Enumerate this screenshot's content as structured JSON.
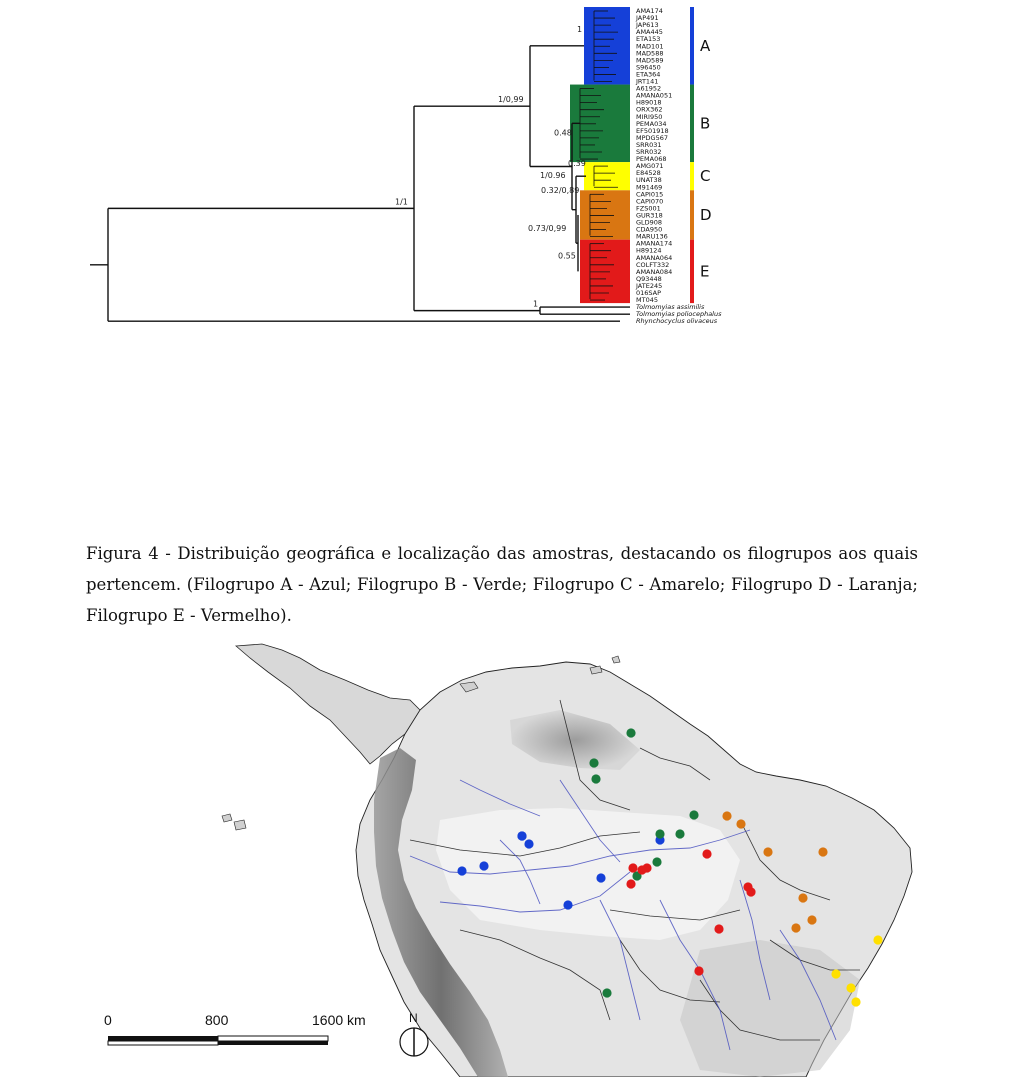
{
  "tree": {
    "clades": [
      {
        "label": "A",
        "color": "#1540d8",
        "leaves": [
          "AMA174",
          "JAP491",
          "JAP613",
          "AMA445",
          "ETA153",
          "MAD101",
          "MAD588",
          "MAD589",
          "S96450",
          "ETA364",
          "JRT141"
        ]
      },
      {
        "label": "B",
        "color": "#1a7a3c",
        "leaves": [
          "A61952",
          "AMANA051",
          "H89018",
          "ORX362",
          "MIRI950",
          "PEMA034",
          "EF501918",
          "MPDG567",
          "SRR031",
          "SRR032",
          "PEMA068"
        ]
      },
      {
        "label": "C",
        "color": "#ffff00",
        "leaves": [
          "AMG071",
          "E84528",
          "UNAT38",
          "M91469"
        ]
      },
      {
        "label": "D",
        "color": "#d97612",
        "leaves": [
          "CAPI015",
          "CAPI070",
          "FZS001",
          "GUR318",
          "GLD908",
          "CDA950",
          "MARU136"
        ]
      },
      {
        "label": "E",
        "color": "#e21a1a",
        "leaves": [
          "AMANA174",
          "H89124",
          "AMANA064",
          "COLFT332",
          "AMANA084",
          "Q93448",
          "JATE245",
          "016SAP",
          "MT045"
        ]
      }
    ],
    "outgroups": [
      "Tolmomyias assimilis",
      "Tolmomyias poliocephalus",
      "Rhynchocyclus olivaceus"
    ],
    "support": {
      "node_A": "1",
      "node_AB_CDE": "1/0,99",
      "node_B": "0.48",
      "node_C": "0.39",
      "node_C_DE": "1/0.96",
      "node_D": "0.32/0,89",
      "node_DE": "0.73/0,99",
      "node_E": "0.55",
      "node_ingroup": "1/1",
      "node_tolmomyias": "1"
    }
  },
  "caption": {
    "text": "Figura 4 - Distribuição geográfica e localização das amostras, destacando os filogrupos aos quais pertencem. (Filogrupo A - Azul; Filogrupo B - Verde; Filogrupo C - Amarelo; Filogrupo D - Laranja; Filogrupo E - Vermelho)."
  },
  "map": {
    "scale_labels": [
      "0",
      "800",
      "1600 km"
    ],
    "north_label": "N",
    "dot_colors": {
      "A": "#1540d8",
      "B": "#1a7a3c",
      "C": "#ffe000",
      "D": "#d97612",
      "E": "#e21a1a"
    }
  }
}
